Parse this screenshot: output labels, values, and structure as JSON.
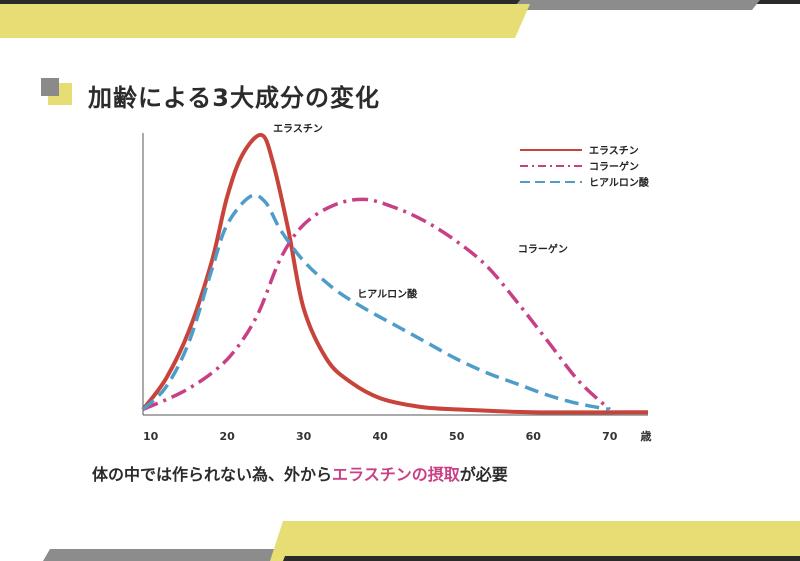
{
  "slide": {
    "title": "加齢による3大成分の変化",
    "caption_parts": {
      "before": "体の中では作られない為、外から",
      "highlight": "エラスチンの摂取",
      "after": "が必要"
    }
  },
  "colors": {
    "top_dark": "#2a2a2a",
    "top_gray": "#8c8c8c",
    "yellow": "#e6dd75",
    "square_gray": "#8a8a8a",
    "elastin": "#c8433a",
    "collagen": "#c83f86",
    "hyaluronic": "#4e9dc9",
    "axis": "#555555",
    "highlight_text": "#c83f86"
  },
  "chart_data": {
    "type": "line",
    "title": "",
    "xlabel": "",
    "ylabel": "",
    "x_ticks": [
      10,
      20,
      30,
      40,
      50,
      60,
      70
    ],
    "x_unit_label": "歳",
    "xlim": [
      9,
      75
    ],
    "ylim": [
      0,
      100
    ],
    "legend": {
      "position": "top-right",
      "entries": [
        "エラスチン",
        "コラーゲン",
        "ヒアルロン酸"
      ]
    },
    "series": [
      {
        "name": "エラスチン",
        "style": "solid",
        "color": "#c8433a",
        "points": [
          [
            9,
            2
          ],
          [
            12,
            13
          ],
          [
            15,
            30
          ],
          [
            18,
            55
          ],
          [
            20,
            78
          ],
          [
            22,
            93
          ],
          [
            24.5,
            100
          ],
          [
            26,
            90
          ],
          [
            28,
            66
          ],
          [
            30,
            38
          ],
          [
            33,
            20
          ],
          [
            36,
            12
          ],
          [
            40,
            6
          ],
          [
            45,
            3
          ],
          [
            50,
            2
          ],
          [
            60,
            1
          ],
          [
            75,
            1
          ]
        ]
      },
      {
        "name": "コラーゲン",
        "style": "dashdot",
        "color": "#c83f86",
        "points": [
          [
            9,
            2
          ],
          [
            14,
            8
          ],
          [
            18,
            15
          ],
          [
            21,
            23
          ],
          [
            24,
            36
          ],
          [
            27,
            56
          ],
          [
            30,
            68
          ],
          [
            34,
            75
          ],
          [
            38,
            77
          ],
          [
            42,
            74
          ],
          [
            46,
            69
          ],
          [
            50,
            62
          ],
          [
            54,
            53
          ],
          [
            58,
            40
          ],
          [
            62,
            26
          ],
          [
            66,
            12
          ],
          [
            70,
            2
          ]
        ]
      },
      {
        "name": "ヒアルロン酸",
        "style": "dashed",
        "color": "#4e9dc9",
        "points": [
          [
            9,
            2
          ],
          [
            12,
            10
          ],
          [
            15,
            26
          ],
          [
            18,
            52
          ],
          [
            20,
            68
          ],
          [
            23,
            78
          ],
          [
            25,
            76
          ],
          [
            27,
            66
          ],
          [
            30,
            55
          ],
          [
            34,
            45
          ],
          [
            38,
            38
          ],
          [
            42,
            32
          ],
          [
            46,
            26
          ],
          [
            50,
            20
          ],
          [
            54,
            15
          ],
          [
            58,
            11
          ],
          [
            62,
            7
          ],
          [
            66,
            4
          ],
          [
            70,
            2
          ]
        ]
      }
    ],
    "annotations": [
      {
        "text": "エラスチン",
        "x": 26,
        "y": 101
      },
      {
        "text": "コラーゲン",
        "x": 58,
        "y": 58
      },
      {
        "text": "ヒアルロン酸",
        "x": 37,
        "y": 42
      }
    ]
  }
}
